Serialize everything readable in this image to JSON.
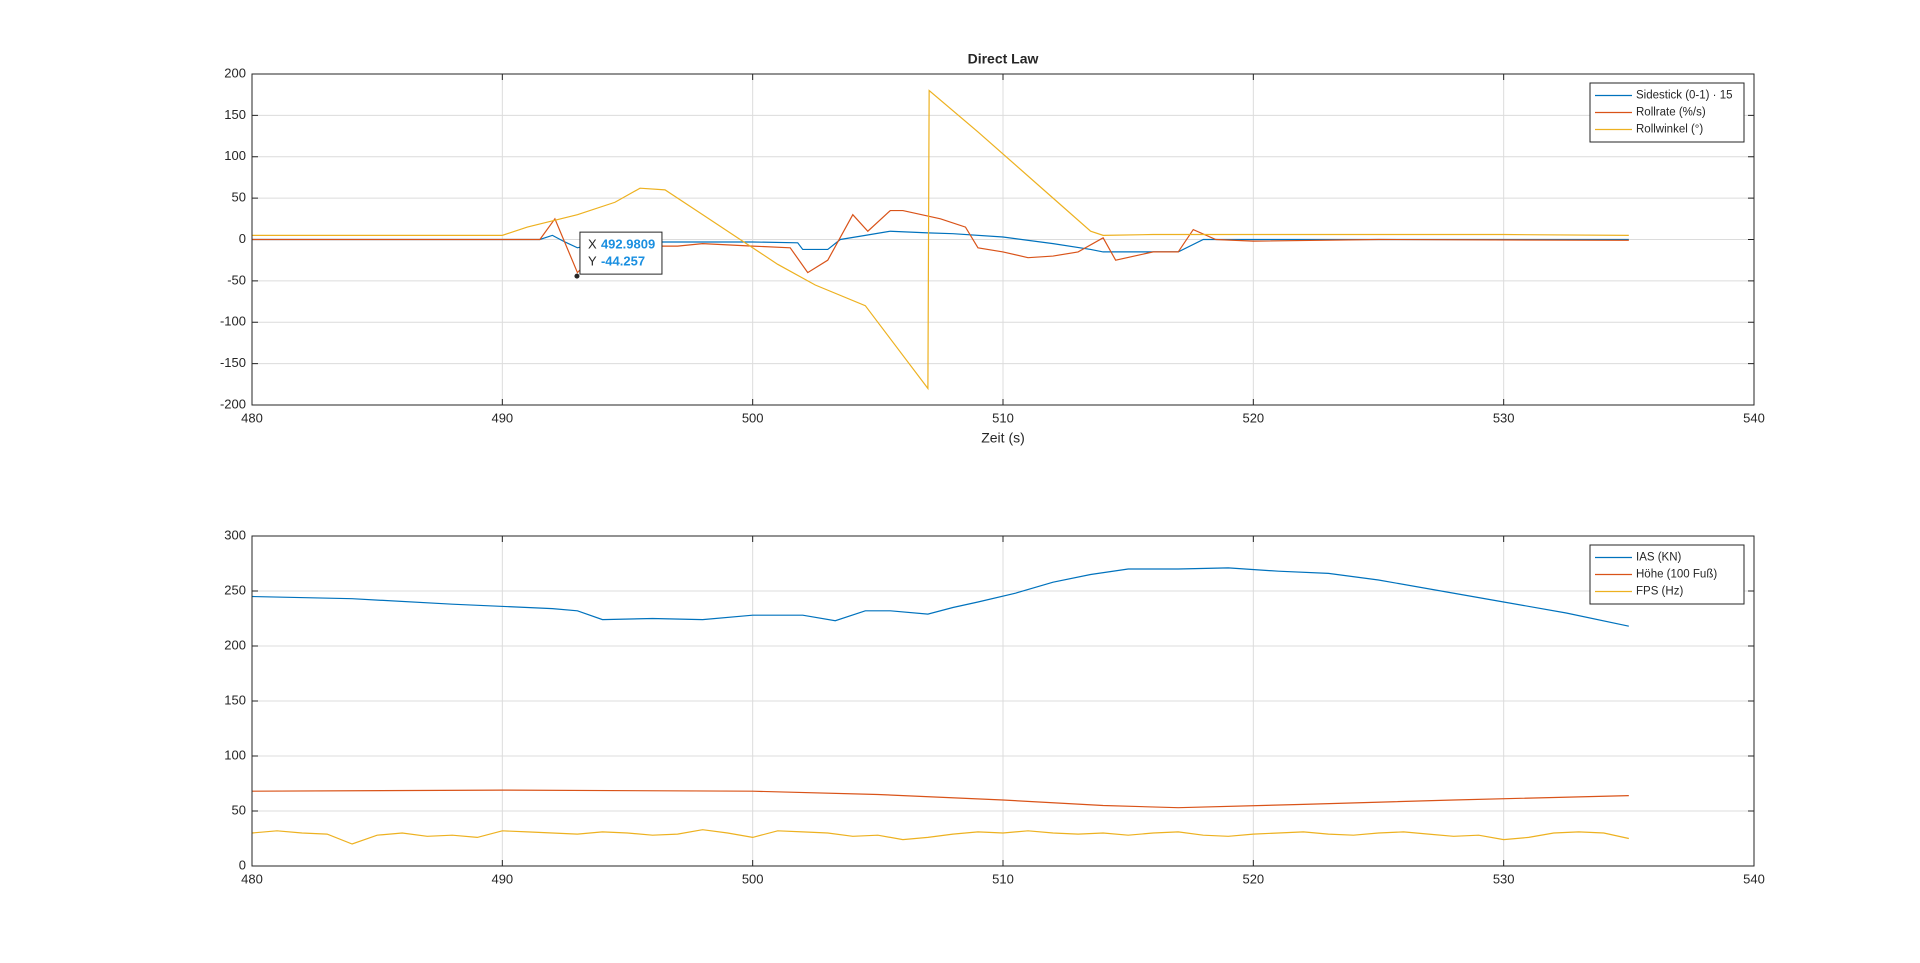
{
  "chart_data": [
    {
      "type": "line",
      "title": "Direct Law",
      "xlabel": "Zeit (s)",
      "xlim": [
        480,
        540
      ],
      "xticks": [
        480,
        490,
        500,
        510,
        520,
        530,
        540
      ],
      "ylim": [
        -200,
        200
      ],
      "yticks": [
        -200,
        -150,
        -100,
        -50,
        0,
        50,
        100,
        150,
        200
      ],
      "grid": true,
      "legend": "northeast",
      "series": [
        {
          "name": "Sidestick (0-1) · 15",
          "color": "#0072BD",
          "x": [
            480,
            490,
            491.5,
            492,
            492.5,
            493,
            494,
            500,
            501.8,
            502,
            503,
            503.5,
            504.5,
            505.5,
            507,
            508,
            510,
            512,
            513.5,
            514,
            517,
            518,
            520,
            535
          ],
          "values": [
            0,
            0,
            0,
            5,
            -3,
            -10,
            -3,
            -3,
            -4,
            -12,
            -12,
            0,
            5,
            10,
            8,
            7,
            3,
            -5,
            -12,
            -15,
            -15,
            0,
            0,
            0
          ]
        },
        {
          "name": "Rollrate (%/s)",
          "color": "#D95319",
          "x": [
            480,
            491.5,
            492.1,
            493,
            494,
            497,
            498,
            500,
            501.5,
            502.2,
            503,
            504,
            504.6,
            505.5,
            506,
            507.5,
            508.5,
            509,
            510,
            511,
            512,
            513,
            514,
            514.5,
            516,
            517,
            517.6,
            518.5,
            520,
            525,
            535
          ],
          "values": [
            0,
            0,
            25,
            -40,
            -8,
            -8,
            -5,
            -8,
            -10,
            -40,
            -25,
            30,
            10,
            35,
            35,
            25,
            15,
            -10,
            -15,
            -22,
            -20,
            -15,
            2,
            -25,
            -15,
            -15,
            12,
            0,
            -2,
            0,
            -1
          ]
        },
        {
          "name": "Rollwinkel (°)",
          "color": "#EDB120",
          "x": [
            480,
            490,
            491,
            493,
            494.5,
            495.5,
            496.5,
            498,
            499.5,
            501,
            502.5,
            504.5,
            505.5,
            507,
            507.05,
            509,
            512,
            513.5,
            514,
            516,
            530,
            535
          ],
          "values": [
            5,
            5,
            15,
            30,
            45,
            62,
            60,
            30,
            0,
            -30,
            -55,
            -80,
            -120,
            -180,
            180,
            130,
            50,
            10,
            5,
            6,
            6,
            5
          ]
        }
      ],
      "datatip": {
        "x_label": "X",
        "y_label": "Y",
        "x": 492.9809,
        "y": -44.257
      }
    },
    {
      "type": "line",
      "xlim": [
        480,
        540
      ],
      "xticks": [
        480,
        490,
        500,
        510,
        520,
        530,
        540
      ],
      "ylim": [
        0,
        300
      ],
      "yticks": [
        0,
        50,
        100,
        150,
        200,
        250,
        300
      ],
      "grid": true,
      "legend": "northeast",
      "series": [
        {
          "name": "IAS (KN)",
          "color": "#0072BD",
          "x": [
            480,
            484,
            488,
            492,
            493,
            494,
            496,
            498,
            500,
            502,
            503.3,
            504.5,
            505.5,
            507,
            508,
            509,
            510.5,
            512,
            513.5,
            515,
            517,
            519,
            521,
            523,
            525,
            527.5,
            530,
            532.5,
            535
          ],
          "values": [
            245,
            243,
            238,
            234,
            232,
            224,
            225,
            224,
            228,
            228,
            223,
            232,
            232,
            229,
            235,
            240,
            248,
            258,
            265,
            270,
            270,
            271,
            268,
            266,
            260,
            250,
            240,
            230,
            218
          ]
        },
        {
          "name": "Höhe (100 Fuß)",
          "color": "#D95319",
          "x": [
            480,
            490,
            500,
            505,
            510,
            514,
            517,
            522,
            528,
            535
          ],
          "values": [
            68,
            69,
            68,
            65,
            60,
            55,
            53,
            56,
            60,
            64
          ]
        },
        {
          "name": "FPS (Hz)",
          "color": "#EDB120",
          "x": [
            480,
            481,
            482,
            483,
            484,
            485,
            486,
            487,
            488,
            489,
            490,
            491,
            492,
            493,
            494,
            495,
            496,
            497,
            498,
            499,
            500,
            501,
            502,
            503,
            504,
            505,
            506,
            507,
            508,
            509,
            510,
            511,
            512,
            513,
            514,
            515,
            516,
            517,
            518,
            519,
            520,
            521,
            522,
            523,
            524,
            525,
            526,
            527,
            528,
            529,
            530,
            531,
            532,
            533,
            534,
            535
          ],
          "values": [
            30,
            32,
            30,
            29,
            20,
            28,
            30,
            27,
            28,
            26,
            32,
            31,
            30,
            29,
            31,
            30,
            28,
            29,
            33,
            30,
            26,
            32,
            31,
            30,
            27,
            28,
            24,
            26,
            29,
            31,
            30,
            32,
            30,
            29,
            30,
            28,
            30,
            31,
            28,
            27,
            29,
            30,
            31,
            29,
            28,
            30,
            31,
            29,
            27,
            28,
            24,
            26,
            30,
            31,
            30,
            25
          ]
        }
      ]
    }
  ]
}
